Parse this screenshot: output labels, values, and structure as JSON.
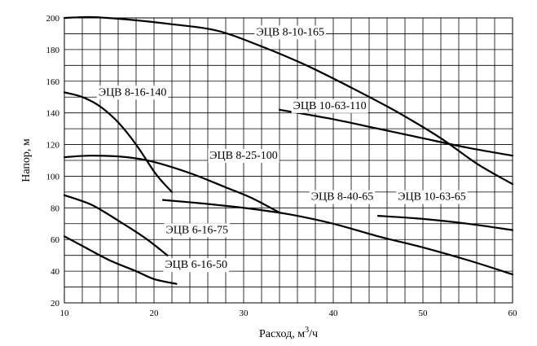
{
  "chart_data": {
    "type": "line",
    "xlabel": "Расход, м",
    "xlabel_sup": "3",
    "xlabel_tail": "/ч",
    "ylabel": "Напор, м",
    "xlim": [
      10,
      60
    ],
    "ylim": [
      20,
      200
    ],
    "x_major_ticks": [
      10,
      20,
      30,
      40,
      50,
      60
    ],
    "y_major_ticks": [
      20,
      40,
      60,
      80,
      100,
      120,
      140,
      160,
      180,
      200
    ],
    "x_minor_step": 2,
    "y_minor_step": 10,
    "grid": true,
    "line_color": "#000000",
    "series": [
      {
        "name": "ЭЦВ 8-10-165",
        "x": [
          10,
          13,
          17,
          22,
          27,
          32,
          37,
          42,
          47,
          52,
          56,
          60
        ],
        "y": [
          200,
          200.5,
          199,
          196,
          192,
          182,
          170,
          156,
          141,
          124,
          108,
          95
        ]
      },
      {
        "name": "ЭЦВ 8-16-140",
        "x": [
          10,
          12,
          14,
          16,
          18,
          20,
          21,
          22
        ],
        "y": [
          153,
          150,
          144,
          134,
          120,
          103,
          96,
          90
        ]
      },
      {
        "name": "ЭЦВ 10-63-110",
        "x": [
          34,
          40,
          45,
          50,
          55,
          60
        ],
        "y": [
          142,
          136,
          130,
          124,
          118,
          113
        ]
      },
      {
        "name": "ЭЦВ 8-25-100",
        "x": [
          10,
          13,
          17,
          20,
          24,
          28,
          31,
          34
        ],
        "y": [
          112,
          113,
          112,
          109,
          102,
          93,
          86,
          77
        ]
      },
      {
        "name": "ЭЦВ 8-40-65",
        "x": [
          21,
          25,
          30,
          35,
          40,
          45,
          50,
          55,
          60
        ],
        "y": [
          85,
          83,
          80,
          76,
          70,
          62,
          55,
          47,
          38
        ]
      },
      {
        "name": "ЭЦВ 10-63-65",
        "x": [
          45,
          50,
          55,
          60
        ],
        "y": [
          75,
          73,
          70,
          66
        ]
      },
      {
        "name": "ЭЦВ 6-16-75",
        "x": [
          10,
          13,
          16,
          19,
          21.5
        ],
        "y": [
          88,
          82,
          72,
          61,
          50
        ]
      },
      {
        "name": "ЭЦВ 6-16-50",
        "x": [
          10,
          12,
          15,
          18,
          20,
          22.5
        ],
        "y": [
          62,
          56,
          47,
          40,
          35,
          32
        ]
      }
    ]
  }
}
